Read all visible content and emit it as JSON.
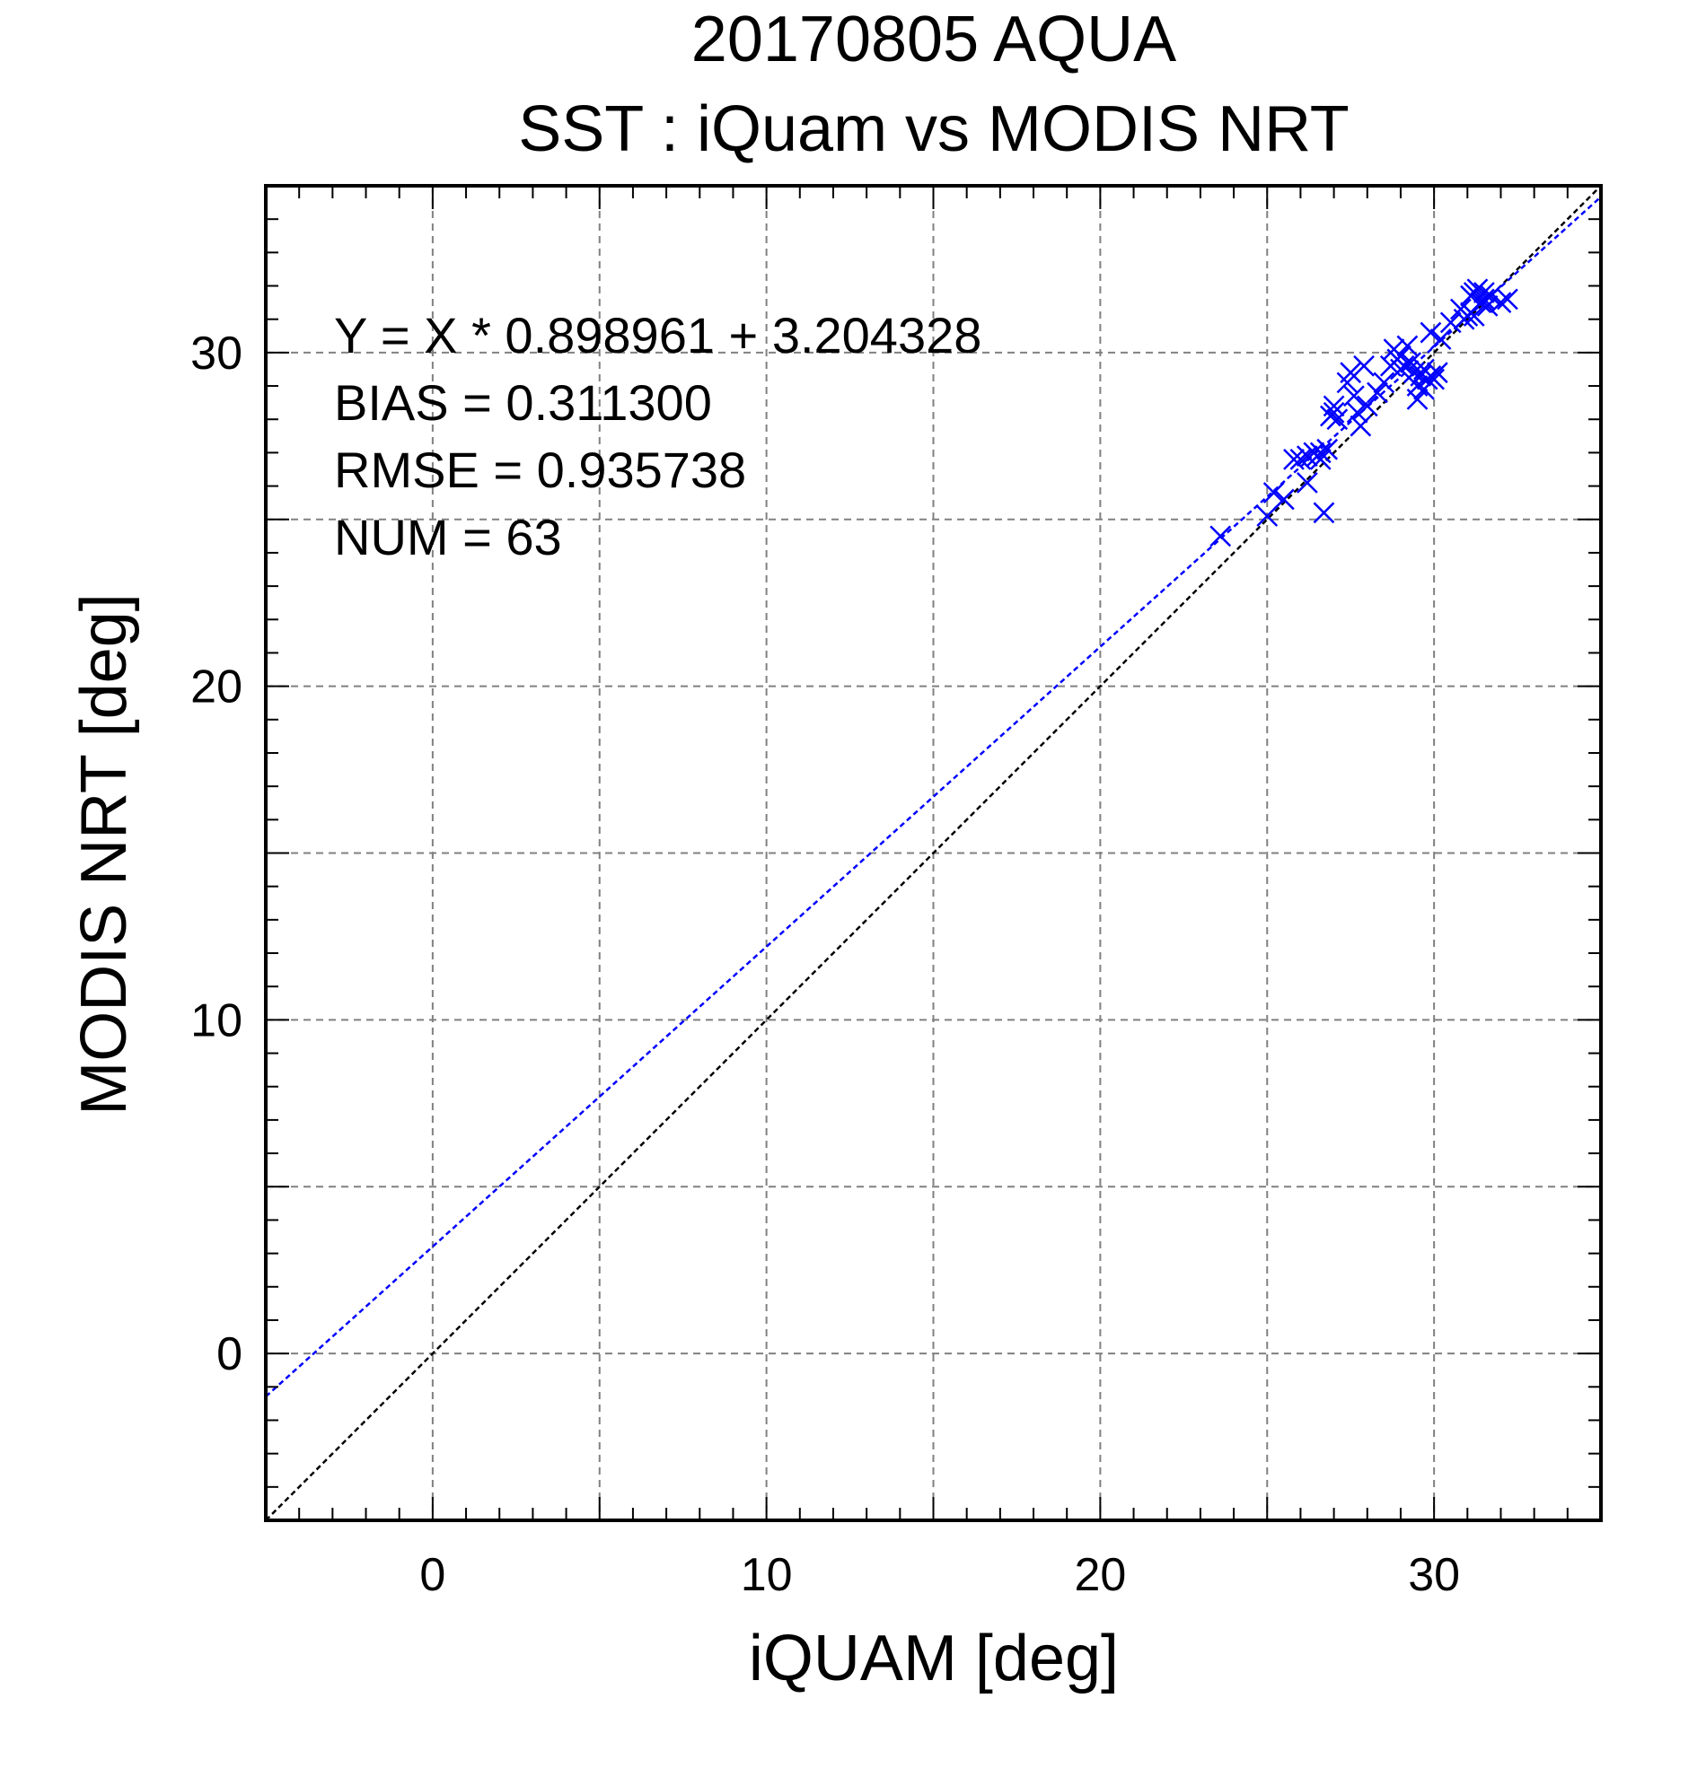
{
  "chart_data": {
    "type": "scatter",
    "title": "20170805 AQUA",
    "subtitle": "SST : iQuam vs MODIS NRT",
    "xlabel": "iQUAM [deg]",
    "ylabel": "MODIS NRT [deg]",
    "xlim": [
      -5,
      35
    ],
    "ylim": [
      -5,
      35
    ],
    "xticks": [
      0,
      10,
      20,
      30
    ],
    "yticks": [
      0,
      10,
      20,
      30
    ],
    "minor_tick_step": 1,
    "grid": true,
    "grid_step": 5,
    "stats": [
      "Y = X * 0.898961 + 3.204328",
      "BIAS = 0.311300",
      "RMSE = 0.935738",
      "NUM = 63"
    ],
    "regression": {
      "slope": 0.898961,
      "intercept": 3.204328,
      "color": "#0000ff"
    },
    "identity_line_color": "#000000",
    "marker": "x",
    "marker_color": "#0000ff",
    "points": [
      [
        23.6,
        24.5
      ],
      [
        25.0,
        25.1
      ],
      [
        25.2,
        25.8
      ],
      [
        25.5,
        25.6
      ],
      [
        25.8,
        26.8
      ],
      [
        26.0,
        26.8
      ],
      [
        26.2,
        26.1
      ],
      [
        26.2,
        26.9
      ],
      [
        26.4,
        27.0
      ],
      [
        26.5,
        26.9
      ],
      [
        26.6,
        27.0
      ],
      [
        26.6,
        26.8
      ],
      [
        26.7,
        25.2
      ],
      [
        26.8,
        27.1
      ],
      [
        26.9,
        28.1
      ],
      [
        27.0,
        28.4
      ],
      [
        27.0,
        28.2
      ],
      [
        27.1,
        28.0
      ],
      [
        27.4,
        29.1
      ],
      [
        27.5,
        29.4
      ],
      [
        27.6,
        28.7
      ],
      [
        27.7,
        28.2
      ],
      [
        27.8,
        27.8
      ],
      [
        27.9,
        29.6
      ],
      [
        28.0,
        28.4
      ],
      [
        28.3,
        28.8
      ],
      [
        28.5,
        29.1
      ],
      [
        28.7,
        29.6
      ],
      [
        28.8,
        30.1
      ],
      [
        28.9,
        29.8
      ],
      [
        29.0,
        29.5
      ],
      [
        29.0,
        29.9
      ],
      [
        29.1,
        29.6
      ],
      [
        29.2,
        30.2
      ],
      [
        29.3,
        29.7
      ],
      [
        29.4,
        29.4
      ],
      [
        29.5,
        29.0
      ],
      [
        29.5,
        28.6
      ],
      [
        29.6,
        29.3
      ],
      [
        29.7,
        29.5
      ],
      [
        29.7,
        28.9
      ],
      [
        29.8,
        29.2
      ],
      [
        29.9,
        29.3
      ],
      [
        29.9,
        30.6
      ],
      [
        30.0,
        29.2
      ],
      [
        30.1,
        29.4
      ],
      [
        30.5,
        30.9
      ],
      [
        30.8,
        31.3
      ],
      [
        30.9,
        31.0
      ],
      [
        31.0,
        31.1
      ],
      [
        31.1,
        31.2
      ],
      [
        31.1,
        31.7
      ],
      [
        31.2,
        31.1
      ],
      [
        31.2,
        31.8
      ],
      [
        31.3,
        31.9
      ],
      [
        31.4,
        31.5
      ],
      [
        31.5,
        31.6
      ],
      [
        31.5,
        31.8
      ],
      [
        31.6,
        31.4
      ],
      [
        31.7,
        31.7
      ],
      [
        32.0,
        31.5
      ],
      [
        32.2,
        31.6
      ],
      [
        30.2,
        30.4
      ]
    ]
  }
}
